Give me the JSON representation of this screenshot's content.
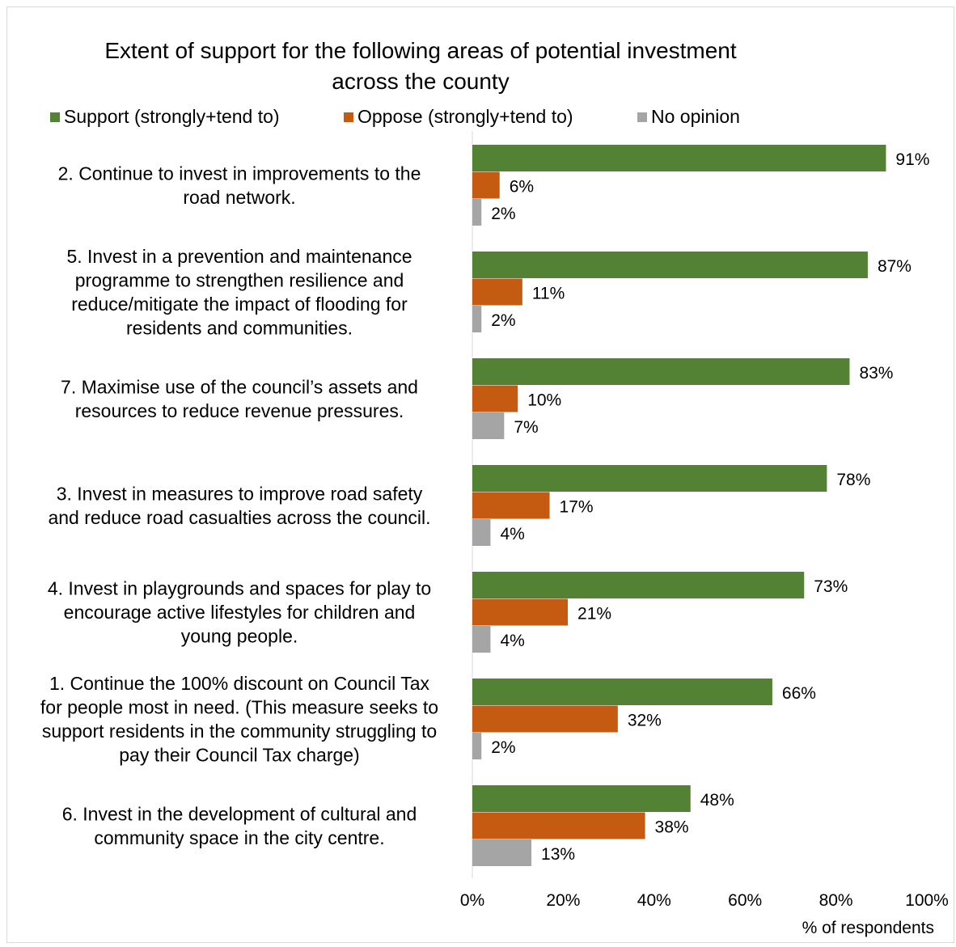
{
  "chart_data": {
    "type": "bar",
    "orientation": "horizontal",
    "title": "Extent of support for the following areas of potential investment across the county",
    "title_lines": [
      "Extent of support for the following areas of potential investment",
      "across the county"
    ],
    "xlabel": "% of respondents",
    "xlim": [
      0,
      100
    ],
    "x_ticks": [
      "0%",
      "20%",
      "40%",
      "60%",
      "80%",
      "100%"
    ],
    "legend_position": "top",
    "categories": [
      [
        "2. Continue to invest in improvements to the",
        "road network."
      ],
      [
        "5. Invest in a prevention and maintenance",
        "programme to strengthen resilience and",
        "reduce/mitigate the impact of flooding for",
        "residents and communities."
      ],
      [
        "7. Maximise use of the council’s assets and",
        "resources to reduce revenue pressures."
      ],
      [
        "3. Invest in measures to improve road safety",
        "and reduce road casualties across the council."
      ],
      [
        "4. Invest in playgrounds and spaces for play to",
        "encourage active lifestyles for children and",
        "young people."
      ],
      [
        "1. Continue the 100% discount on Council Tax",
        "for people most in need. (This measure seeks to",
        "support residents in the community struggling to",
        "pay their Council Tax charge)"
      ],
      [
        "6. Invest in the development of cultural and",
        "community space in the city centre."
      ]
    ],
    "series": [
      {
        "name": "Support (strongly+tend to)",
        "color": "#548235",
        "values": [
          91,
          87,
          83,
          78,
          73,
          66,
          48
        ],
        "labels": [
          "91%",
          "87%",
          "83%",
          "78%",
          "73%",
          "66%",
          "48%"
        ]
      },
      {
        "name": "Oppose (strongly+tend to)",
        "color": "#c55a11",
        "values": [
          6,
          11,
          10,
          17,
          21,
          32,
          38
        ],
        "labels": [
          "6%",
          "11%",
          "10%",
          "17%",
          "21%",
          "32%",
          "38%"
        ]
      },
      {
        "name": "No opinion",
        "color": "#a5a5a5",
        "values": [
          2,
          2,
          7,
          4,
          4,
          2,
          13
        ],
        "labels": [
          "2%",
          "2%",
          "7%",
          "4%",
          "4%",
          "2%",
          "13%"
        ]
      }
    ]
  }
}
